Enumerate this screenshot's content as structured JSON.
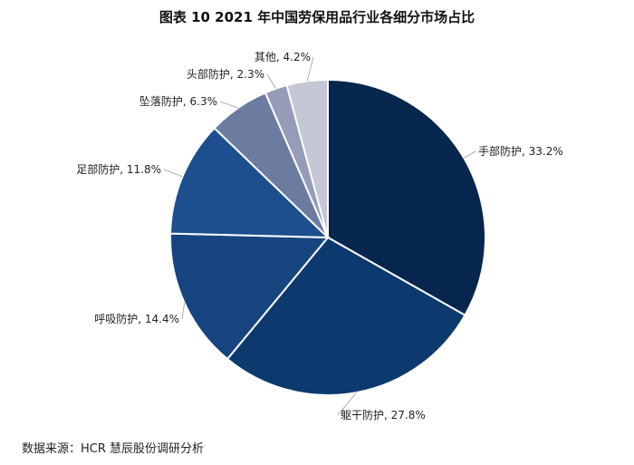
{
  "title": "图表 10 2021 年中国劳保用品行业各细分市场占比",
  "source": "数据来源：HCR 慧辰股份调研分析",
  "chart_data": {
    "type": "pie",
    "title": "图表 10 2021 年中国劳保用品行业各细分市场占比",
    "unit": "%",
    "slices": [
      {
        "label": "手部防护",
        "value": 33.2,
        "value_label": "33.2%",
        "color": "#06264f"
      },
      {
        "label": "躯干防护",
        "value": 27.8,
        "value_label": "27.8%",
        "color": "#0d3a6e"
      },
      {
        "label": "呼吸防护",
        "value": 14.4,
        "value_label": "14.4%",
        "color": "#17457f"
      },
      {
        "label": "足部防护",
        "value": 11.8,
        "value_label": "11.8%",
        "color": "#1d4f8e"
      },
      {
        "label": "坠落防护",
        "value": 6.3,
        "value_label": "6.3%",
        "color": "#6c7ca1"
      },
      {
        "label": "头部防护",
        "value": 2.3,
        "value_label": "2.3%",
        "color": "#949cb8"
      },
      {
        "label": "其他",
        "value": 4.2,
        "value_label": "4.2%",
        "color": "#c3c7d6"
      }
    ]
  }
}
